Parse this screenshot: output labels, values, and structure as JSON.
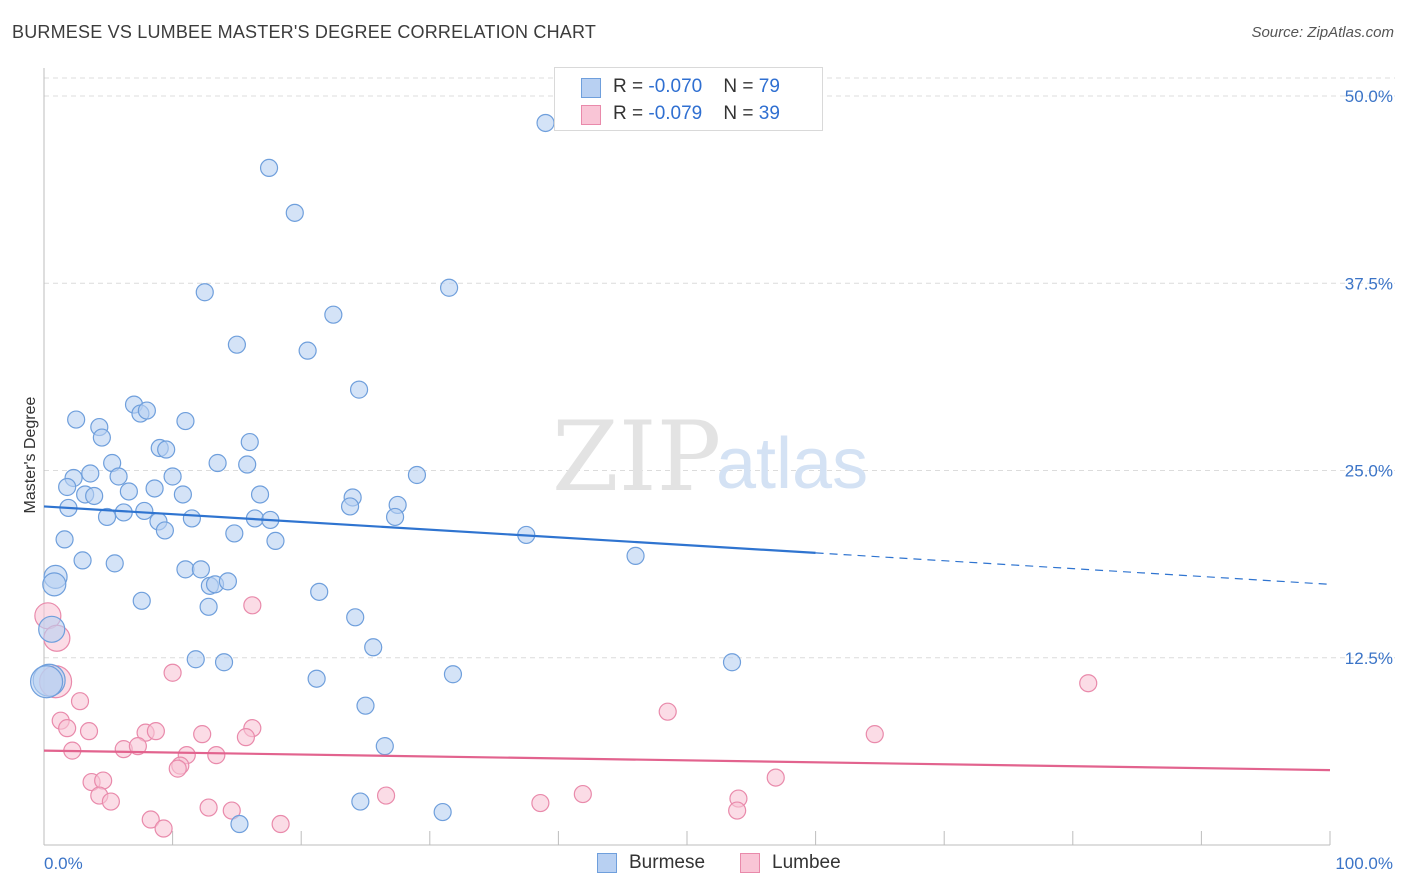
{
  "title": "BURMESE VS LUMBEE MASTER'S DEGREE CORRELATION CHART",
  "source": "Source: ZipAtlas.com",
  "watermark": {
    "zip": "ZIP",
    "atlas": "atlas"
  },
  "legend": {
    "burmese": {
      "r_label": "R = ",
      "r_value": "-0.070",
      "n_label": "N = ",
      "n_value": "79"
    },
    "lumbee": {
      "r_label": "R = ",
      "r_value": "-0.079",
      "n_label": "N = ",
      "n_value": "39"
    }
  },
  "bottom_legend": {
    "burmese": "Burmese",
    "lumbee": "Lumbee"
  },
  "colors": {
    "burmese_fill": "#b8d0f2",
    "burmese_stroke": "#6f9fdc",
    "burmese_line": "#2f74d0",
    "lumbee_fill": "#f9c5d6",
    "lumbee_stroke": "#e98aab",
    "lumbee_line": "#e2638e",
    "tick_text": "#3b74c7",
    "grid": "#dcdcdc"
  },
  "chart_data": {
    "type": "scatter",
    "title": "BURMESE VS LUMBEE MASTER'S DEGREE CORRELATION CHART",
    "xlabel": "",
    "ylabel": "Master's Degree",
    "xlim": [
      0,
      100
    ],
    "ylim": [
      0,
      51
    ],
    "x_tick_labels": [
      "0.0%",
      "100.0%"
    ],
    "y_ticks": [
      12.5,
      25.0,
      37.5,
      50.0
    ],
    "y_tick_labels": [
      "12.5%",
      "25.0%",
      "37.5%",
      "50.0%"
    ],
    "grid": true,
    "legend_position": "top-center",
    "series": [
      {
        "name": "Burmese",
        "trend": {
          "x0": 0,
          "y0": 22.6,
          "x1": 60,
          "y1": 19.5,
          "dash_to_x": 100,
          "dash_to_y": 17.4
        },
        "points": [
          [
            39,
            48.2
          ],
          [
            17.5,
            45.2
          ],
          [
            19.5,
            42.2
          ],
          [
            31.5,
            37.2
          ],
          [
            12.5,
            36.9
          ],
          [
            22.5,
            35.4
          ],
          [
            15,
            33.4
          ],
          [
            20.5,
            33.0
          ],
          [
            24.5,
            30.4
          ],
          [
            7,
            29.4
          ],
          [
            7.5,
            28.8
          ],
          [
            8,
            29.0
          ],
          [
            2.5,
            28.4
          ],
          [
            4.3,
            27.9
          ],
          [
            11,
            28.3
          ],
          [
            4.5,
            27.2
          ],
          [
            9,
            26.5
          ],
          [
            9.5,
            26.4
          ],
          [
            16,
            26.9
          ],
          [
            5.3,
            25.5
          ],
          [
            13.5,
            25.5
          ],
          [
            15.8,
            25.4
          ],
          [
            2.3,
            24.5
          ],
          [
            3.6,
            24.8
          ],
          [
            5.8,
            24.6
          ],
          [
            10,
            24.6
          ],
          [
            29,
            24.7
          ],
          [
            1.8,
            23.9
          ],
          [
            3.2,
            23.4
          ],
          [
            3.9,
            23.3
          ],
          [
            6.6,
            23.6
          ],
          [
            8.6,
            23.8
          ],
          [
            10.8,
            23.4
          ],
          [
            16.8,
            23.4
          ],
          [
            24,
            23.2
          ],
          [
            1.9,
            22.5
          ],
          [
            6.2,
            22.2
          ],
          [
            7.8,
            22.3
          ],
          [
            23.8,
            22.6
          ],
          [
            27.5,
            22.7
          ],
          [
            4.9,
            21.9
          ],
          [
            8.9,
            21.6
          ],
          [
            11.5,
            21.8
          ],
          [
            16.4,
            21.8
          ],
          [
            17.6,
            21.7
          ],
          [
            27.3,
            21.9
          ],
          [
            9.4,
            21.0
          ],
          [
            14.8,
            20.8
          ],
          [
            1.6,
            20.4
          ],
          [
            18,
            20.3
          ],
          [
            37.5,
            20.7
          ],
          [
            46,
            19.3
          ],
          [
            3,
            19.0
          ],
          [
            5.5,
            18.8
          ],
          [
            11,
            18.4
          ],
          [
            12.2,
            18.4
          ],
          [
            0.9,
            17.9
          ],
          [
            12.9,
            17.3
          ],
          [
            13.3,
            17.4
          ],
          [
            14.3,
            17.6
          ],
          [
            0.8,
            17.4
          ],
          [
            21.4,
            16.9
          ],
          [
            7.6,
            16.3
          ],
          [
            12.8,
            15.9
          ],
          [
            24.2,
            15.2
          ],
          [
            0.6,
            14.4
          ],
          [
            25.6,
            13.2
          ],
          [
            11.8,
            12.4
          ],
          [
            14,
            12.2
          ],
          [
            53.5,
            12.2
          ],
          [
            21.2,
            11.1
          ],
          [
            31.8,
            11.4
          ],
          [
            0.4,
            11.0
          ],
          [
            25,
            9.3
          ],
          [
            26.5,
            6.6
          ],
          [
            24.6,
            2.9
          ],
          [
            31,
            2.2
          ],
          [
            15.2,
            1.4
          ],
          [
            0.2,
            10.9
          ]
        ]
      },
      {
        "name": "Lumbee",
        "trend": {
          "x0": 0,
          "y0": 6.3,
          "x1": 100,
          "y1": 5.0
        },
        "points": [
          [
            0.3,
            15.3
          ],
          [
            16.2,
            16.0
          ],
          [
            0.9,
            10.9
          ],
          [
            10,
            11.5
          ],
          [
            2.8,
            9.6
          ],
          [
            1.3,
            8.3
          ],
          [
            1.8,
            7.8
          ],
          [
            3.5,
            7.6
          ],
          [
            7.9,
            7.5
          ],
          [
            8.7,
            7.6
          ],
          [
            12.3,
            7.4
          ],
          [
            16.2,
            7.8
          ],
          [
            15.7,
            7.2
          ],
          [
            48.5,
            8.9
          ],
          [
            64.6,
            7.4
          ],
          [
            81.2,
            10.8
          ],
          [
            2.2,
            6.3
          ],
          [
            6.2,
            6.4
          ],
          [
            7.3,
            6.6
          ],
          [
            11.1,
            6.0
          ],
          [
            13.4,
            6.0
          ],
          [
            10.6,
            5.3
          ],
          [
            10.4,
            5.1
          ],
          [
            56.9,
            4.5
          ],
          [
            3.7,
            4.2
          ],
          [
            4.6,
            4.3
          ],
          [
            4.3,
            3.3
          ],
          [
            5.2,
            2.9
          ],
          [
            26.6,
            3.3
          ],
          [
            41.9,
            3.4
          ],
          [
            12.8,
            2.5
          ],
          [
            14.6,
            2.3
          ],
          [
            38.6,
            2.8
          ],
          [
            54,
            3.1
          ],
          [
            53.9,
            2.3
          ],
          [
            8.3,
            1.7
          ],
          [
            9.3,
            1.1
          ],
          [
            18.4,
            1.4
          ],
          [
            1.0,
            13.8
          ]
        ]
      }
    ]
  }
}
